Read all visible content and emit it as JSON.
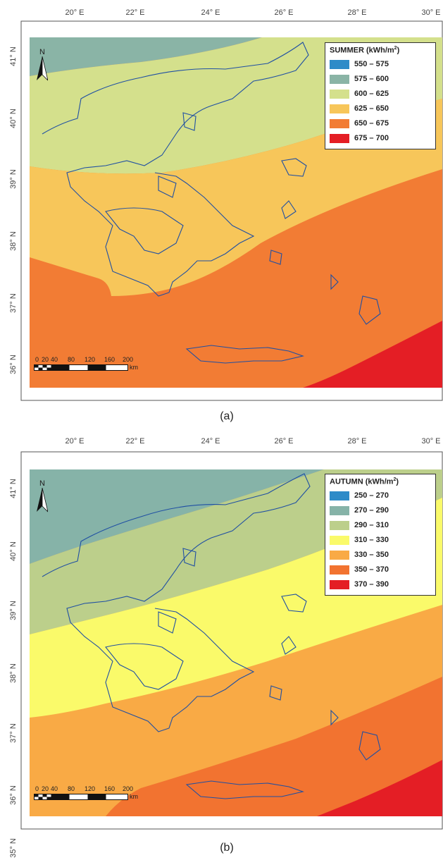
{
  "panels": [
    {
      "caption": "(a)",
      "legend_title": "SUMMER (kWh/m",
      "legend_sup": "2",
      "legend_close": ")",
      "legend": [
        {
          "label": "550 – 575",
          "color": "#2e8bc8"
        },
        {
          "label": "575 – 600",
          "color": "#8ab4a6"
        },
        {
          "label": "600 – 625",
          "color": "#d4e08c"
        },
        {
          "label": "625 – 650",
          "color": "#f7c65a"
        },
        {
          "label": "650 – 675",
          "color": "#f27c34"
        },
        {
          "label": "675 – 700",
          "color": "#e41e25"
        }
      ]
    },
    {
      "caption": "(b)",
      "legend_title": "AUTUMN (kWh/m",
      "legend_sup": "2",
      "legend_close": ")",
      "legend": [
        {
          "label": "250 – 270",
          "color": "#2e8bc8"
        },
        {
          "label": "270 – 290",
          "color": "#86b3a8"
        },
        {
          "label": "290 – 310",
          "color": "#bccf8b"
        },
        {
          "label": "310 – 330",
          "color": "#fafa6a"
        },
        {
          "label": "330 – 350",
          "color": "#f9aa45"
        },
        {
          "label": "350 – 370",
          "color": "#f27330"
        },
        {
          "label": "370 – 390",
          "color": "#e41e25"
        }
      ]
    }
  ],
  "longitude_labels": [
    "20° E",
    "22° E",
    "24° E",
    "26° E",
    "28° E",
    "30° E"
  ],
  "latitude_labels": [
    "41° N",
    "40° N",
    "39° N",
    "38° N",
    "37° N",
    "36° N",
    "35° N"
  ],
  "north_label": "N",
  "scale_ticks": [
    "0",
    "20",
    "40",
    "80",
    "120",
    "160",
    "200"
  ],
  "scale_unit": "km",
  "coastline_color": "#1f4fa3"
}
